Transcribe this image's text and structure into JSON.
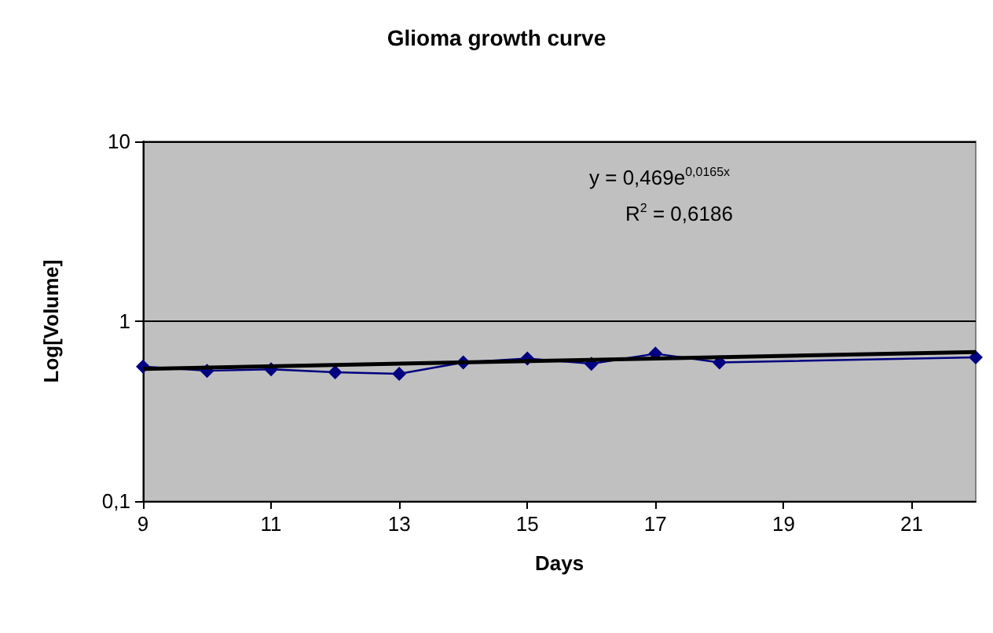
{
  "chart_data": {
    "type": "line",
    "title": "Glioma growth curve",
    "xlabel": "Days",
    "ylabel": "Log[Volume]",
    "annotations": [
      "y = 0,469e$^{0,0165x}$",
      "R$^{2}$ = 0,6186"
    ],
    "series": [
      {
        "color": "#000080",
        "marker": "diamond",
        "x": [
          9,
          10,
          11,
          12,
          13,
          14,
          15,
          16,
          17,
          18,
          22
        ],
        "values": [
          0.56,
          0.53,
          0.54,
          0.52,
          0.51,
          0.59,
          0.62,
          0.58,
          0.66,
          0.59,
          0.63
        ]
      },
      {
        "color": "#000000",
        "marker": "none",
        "x": [
          9,
          22
        ],
        "values": [
          0.543,
          0.674
        ]
      }
    ],
    "xlim": [
      9,
      22
    ],
    "xticks": [
      9,
      11,
      13,
      15,
      17,
      19,
      21
    ],
    "ylim": [
      0.1,
      10
    ],
    "yticks": [
      {
        "value": 0.1,
        "label": "0,1"
      },
      1,
      10
    ],
    "log": true,
    "grid": "y"
  }
}
